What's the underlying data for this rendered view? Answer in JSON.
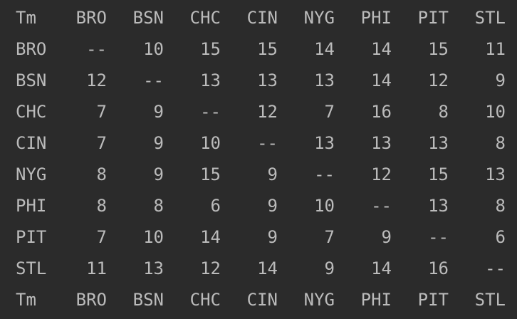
{
  "table": {
    "headers": [
      "Tm",
      "BRO",
      "BSN",
      "CHC",
      "CIN",
      "NYG",
      "PHI",
      "PIT",
      "STL"
    ],
    "rows": [
      [
        "BRO",
        "--",
        "10",
        "15",
        "15",
        "14",
        "14",
        "15",
        "11"
      ],
      [
        "BSN",
        "12",
        "--",
        "13",
        "13",
        "13",
        "14",
        "12",
        "9"
      ],
      [
        "CHC",
        "7",
        "9",
        "--",
        "12",
        "7",
        "16",
        "8",
        "10"
      ],
      [
        "CIN",
        "7",
        "9",
        "10",
        "--",
        "13",
        "13",
        "13",
        "8"
      ],
      [
        "NYG",
        "8",
        "9",
        "15",
        "9",
        "--",
        "12",
        "15",
        "13"
      ],
      [
        "PHI",
        "8",
        "8",
        "6",
        "9",
        "10",
        "--",
        "13",
        "8"
      ],
      [
        "PIT",
        "7",
        "10",
        "14",
        "9",
        "7",
        "9",
        "--",
        "6"
      ],
      [
        "STL",
        "11",
        "13",
        "12",
        "14",
        "9",
        "14",
        "16",
        "--"
      ]
    ],
    "footer": [
      "Tm",
      "BRO",
      "BSN",
      "CHC",
      "CIN",
      "NYG",
      "PHI",
      "PIT",
      "STL"
    ]
  },
  "colors": {
    "background": "#2b2b2b",
    "text": "#bbbbbb"
  }
}
